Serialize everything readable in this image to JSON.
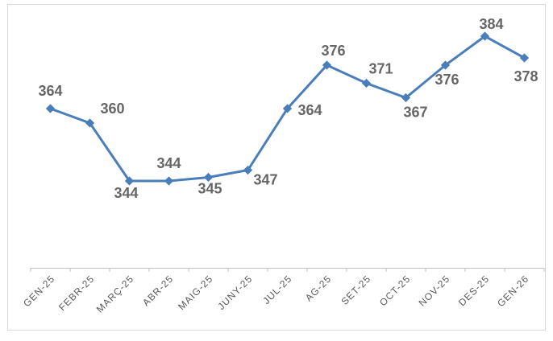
{
  "chart_data": {
    "type": "line",
    "categories": [
      "GEN-25",
      "FEBR-25",
      "MARÇ-25",
      "ABR-25",
      "MAIG-25",
      "JUNY-25",
      "JUL-25",
      "AG-25",
      "SET-25",
      "OCT-25",
      "NOV-25",
      "DES-25",
      "GEN-26"
    ],
    "values": [
      364,
      360,
      344,
      344,
      345,
      347,
      364,
      376,
      371,
      367,
      376,
      384,
      378
    ],
    "color": "#4a7ebb",
    "ylim": [
      320,
      390
    ]
  }
}
